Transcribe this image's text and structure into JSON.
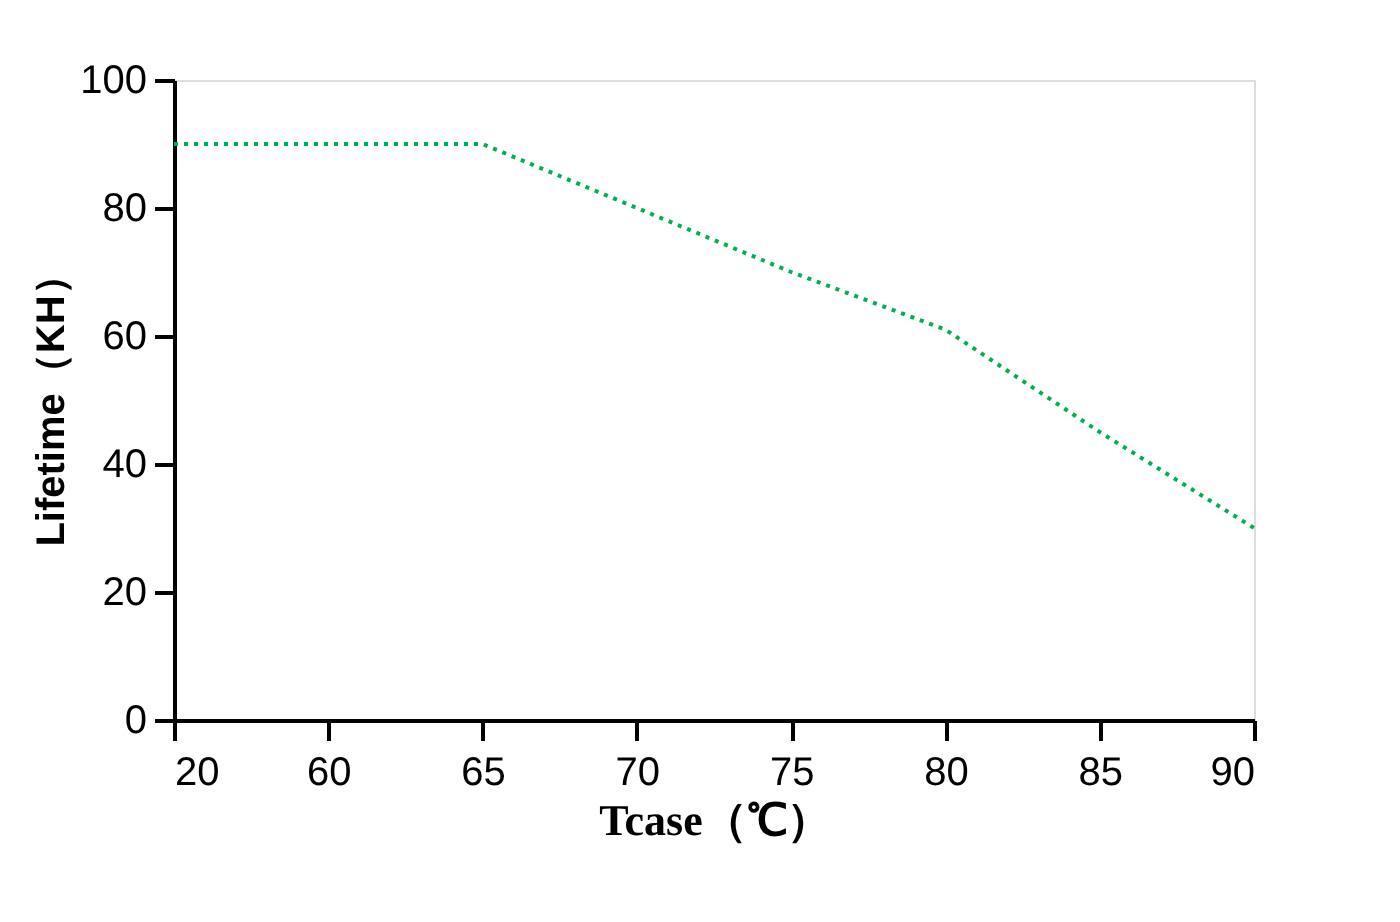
{
  "chart_data": {
    "type": "line",
    "xlabel": "Tcase（℃）",
    "ylabel": "Lifetime（KH）",
    "categories": [
      "20",
      "60",
      "65",
      "70",
      "75",
      "80",
      "85",
      "90"
    ],
    "series": [
      {
        "color": "#00b050",
        "values": [
          90,
          90,
          90,
          80,
          70,
          61,
          45,
          30
        ]
      }
    ],
    "ylim": [
      0,
      100
    ],
    "yticks": [
      0,
      20,
      40,
      60,
      80,
      100
    ],
    "grid": false,
    "legend": false,
    "marker": "none",
    "line_style": "dotted"
  }
}
